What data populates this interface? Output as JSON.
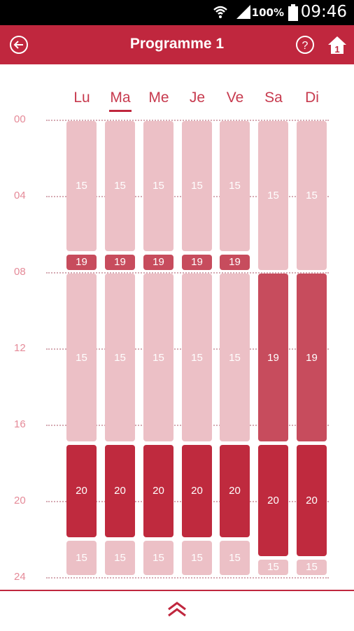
{
  "status_bar": {
    "battery_percent": "100%",
    "time": "09:46",
    "icons": [
      "wifi-icon",
      "signal-icon",
      "battery-icon"
    ]
  },
  "app_bar": {
    "title": "Programme 1",
    "back_icon": "back-arrow-icon",
    "help_icon": "help-icon",
    "home_icon": "home-icon",
    "home_badge": "1"
  },
  "colors": {
    "accent": "#c0273e",
    "temp_15": "#ecc0c6",
    "temp_19": "#c74c5d",
    "temp_20": "#bf2a3e"
  },
  "days": [
    {
      "label": "Lu"
    },
    {
      "label": "Ma",
      "selected": true
    },
    {
      "label": "Me"
    },
    {
      "label": "Je"
    },
    {
      "label": "Ve"
    },
    {
      "label": "Sa"
    },
    {
      "label": "Di"
    }
  ],
  "hour_labels": [
    "00",
    "04",
    "08",
    "12",
    "16",
    "20",
    "24"
  ],
  "schedule": {
    "weekday_blocks": [
      {
        "start": 0,
        "end": 7,
        "temp": "15"
      },
      {
        "start": 7,
        "end": 8,
        "temp": "19"
      },
      {
        "start": 8,
        "end": 17,
        "temp": "15"
      },
      {
        "start": 17,
        "end": 22,
        "temp": "20"
      },
      {
        "start": 22,
        "end": 24,
        "temp": "15"
      }
    ],
    "weekend_blocks": [
      {
        "start": 0,
        "end": 8,
        "temp": "15"
      },
      {
        "start": 8,
        "end": 17,
        "temp": "19"
      },
      {
        "start": 17,
        "end": 23,
        "temp": "20"
      },
      {
        "start": 23,
        "end": 24,
        "temp": "15"
      }
    ]
  },
  "bottom_bar": {
    "expand_icon": "double-chevron-up-icon"
  }
}
